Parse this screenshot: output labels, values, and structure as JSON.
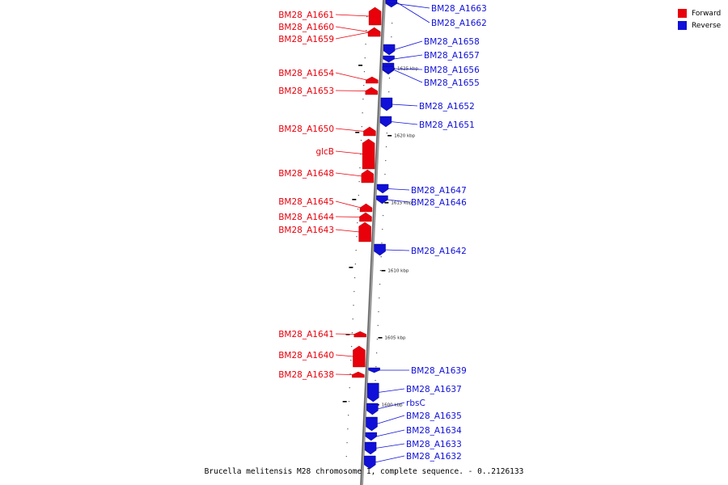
{
  "caption": "Brucella melitensis M28 chromosome 1, complete sequence. - 0..2126133",
  "legend": {
    "forward_label": "Forward",
    "reverse_label": "Reverse",
    "forward_color": "#e8000b",
    "reverse_color": "#1010d8"
  },
  "scale_ticks": [
    "1625 kbp",
    "1620 kbp",
    "1615 kbp",
    "1610 kbp",
    "1605 kbp",
    "1600 kbp"
  ],
  "forward_genes": [
    "BM28_A1661",
    "BM28_A1660",
    "BM28_A1659",
    "BM28_A1654",
    "BM28_A1653",
    "BM28_A1650",
    "glcB",
    "BM28_A1648",
    "BM28_A1645",
    "BM28_A1644",
    "BM28_A1643",
    "BM28_A1641",
    "BM28_A1640",
    "BM28_A1638"
  ],
  "reverse_genes": [
    "BM28_A1663",
    "BM28_A1662",
    "BM28_A1658",
    "BM28_A1657",
    "BM28_A1656",
    "BM28_A1655",
    "BM28_A1652",
    "BM28_A1651",
    "BM28_A1647",
    "BM28_A1646",
    "BM28_A1642",
    "BM28_A1639",
    "BM28_A1637",
    "rbsC",
    "BM28_A1635",
    "BM28_A1634",
    "BM28_A1633",
    "BM28_A1632"
  ]
}
